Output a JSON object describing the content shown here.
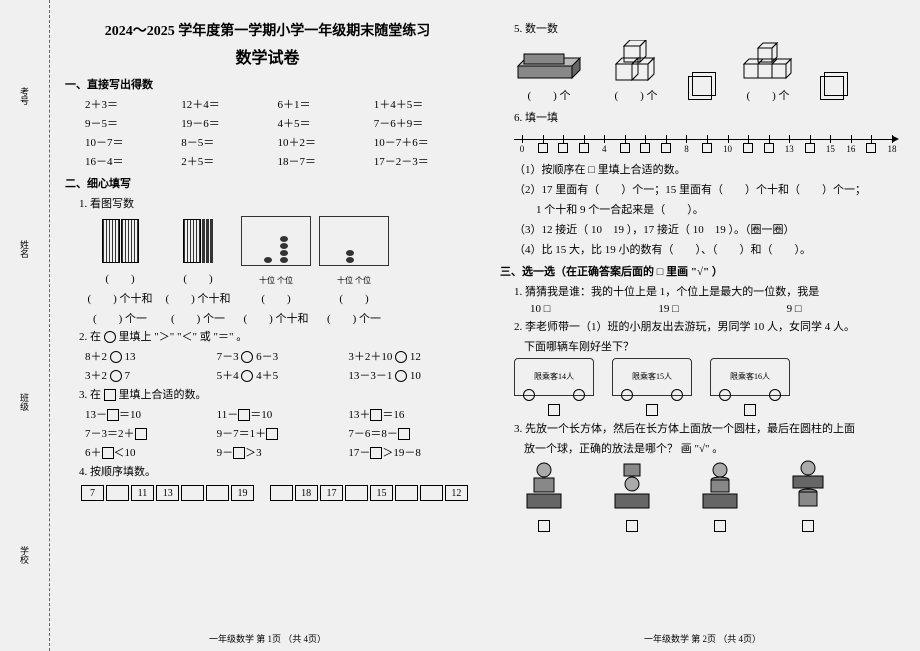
{
  "header": {
    "line1": "2024～2025 学年度第一学期小学一年级期末随堂练习",
    "line2": "数学试卷"
  },
  "binding": [
    "考号",
    "姓名",
    "班级",
    "学校"
  ],
  "s1": {
    "title": "一、直接写出得数",
    "rows": [
      [
        "2＋3＝",
        "12＋4＝",
        "6＋1＝",
        "1＋4＋5＝"
      ],
      [
        "9－5＝",
        "19－6＝",
        "4＋5＝",
        "7－6＋9＝"
      ],
      [
        "10－7＝",
        "8－5＝",
        "10＋2＝",
        "10－7＋6＝"
      ],
      [
        "16－4＝",
        "2＋5＝",
        "18－7＝",
        "17－2－3＝"
      ]
    ]
  },
  "s2": {
    "title": "二、细心填写",
    "q1": {
      "label": "1. 看图写数",
      "paren": "(　　)",
      "tens": "(　　) 个十和",
      "ones": "(　　) 个一",
      "abacus_label": "十位 个位"
    },
    "q2": {
      "label": "2. 在 　 里填上 \"＞\" \"＜\" 或 \"＝\" 。",
      "rows": [
        [
          "8＋2　13",
          "7－3　6－3",
          "3＋2＋10　12"
        ],
        [
          "3＋2　7",
          "5＋4　4＋5",
          "13－3－1　10"
        ]
      ]
    },
    "q3": {
      "label": "3. 在 □ 里填上合适的数。",
      "rows": [
        [
          "13－□＝10",
          "11－□＝10",
          "13＋□＝16"
        ],
        [
          "7－3＝2＋□",
          "9－7＝1＋□",
          "7－6＝8－□"
        ],
        [
          "6＋□＜10",
          "9－□＞3",
          "17－□＞19－8"
        ]
      ]
    },
    "q4": {
      "label": "4. 按顺序填数。",
      "seqA": [
        "7",
        "",
        "11",
        "13",
        "",
        "",
        "19"
      ],
      "seqB": [
        "",
        "18",
        "17",
        "",
        "15",
        "",
        "",
        "12"
      ]
    }
  },
  "s2b": {
    "q5": {
      "label": "5. 数一数",
      "below": "(　　) 个",
      "mid": "(　　) 个",
      "right": "(　　) 个"
    },
    "q6": {
      "label": "6. 填一填",
      "ticks": [
        0,
        1,
        2,
        3,
        4,
        5,
        6,
        7,
        8,
        9,
        10,
        11,
        12,
        13,
        14,
        15,
        16,
        17,
        18
      ],
      "shown": {
        "0": "0",
        "4": "4",
        "8": "8",
        "10": "10",
        "13": "13",
        "15": "15",
        "16": "16",
        "18": "18"
      },
      "lines": [
        "（1）按顺序在 □ 里填上合适的数。",
        "（2）17 里面有（　　）个一；15 里面有（　　）个十和（　　）个一；",
        "　　1 个十和 9 个一合起来是（　　）。",
        "（3）12 接近（ 10　19 ），17 接近（ 10　19 ）。（圈一圈）",
        "（4）比 15 大，比 19 小的数有（　　）、（　　）和（　　）。"
      ]
    }
  },
  "s3": {
    "title": "三、选一选（在正确答案后面的 □ 里画 \"√\" ）",
    "q1": {
      "label": "1. 猜猜我是谁：我的十位上是 1，个位上是最大的一位数，我是",
      "opts": [
        "10 □",
        "19 □",
        "9 □"
      ]
    },
    "q2": {
      "label": "2. 李老师带一（1）班的小朋友出去游玩，男同学 10 人，女同学 4 人。",
      "sub": "下面哪辆车刚好坐下？",
      "bus": [
        "限乘客14人",
        "限乘客15人",
        "限乘客16人"
      ]
    },
    "q3": {
      "label": "3. 先放一个长方体，然后在长方体上面放一个圆柱，最后在圆柱的上面",
      "sub": "放一个球，正确的放法是哪个？ 画 \"√\" 。"
    }
  },
  "footer": {
    "p1": "一年级数学 第 1页 （共 4页）",
    "p2": "一年级数学 第 2页 （共 4页）"
  }
}
